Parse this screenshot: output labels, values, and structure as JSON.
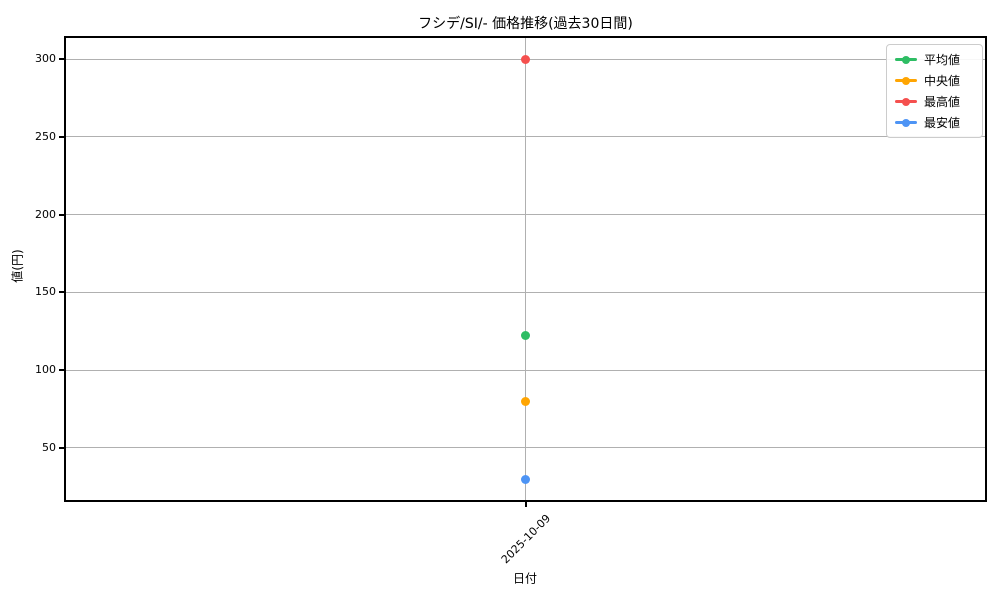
{
  "chart_data": {
    "type": "line",
    "title": "フシデ/SI/- 価格推移(過去30日間)",
    "xlabel": "日付",
    "ylabel": "値(円)",
    "x": [
      "2025-10-09"
    ],
    "series": [
      {
        "name": "平均値",
        "color": "#2ebd64",
        "values": [
          122
        ]
      },
      {
        "name": "中央値",
        "color": "#ffa502",
        "values": [
          80
        ]
      },
      {
        "name": "最高値",
        "color": "#f5504e",
        "values": [
          300
        ]
      },
      {
        "name": "最安値",
        "color": "#4d94f5",
        "values": [
          30
        ]
      }
    ],
    "ylim": [
      16.5,
      313.5
    ],
    "yticks": [
      50,
      100,
      150,
      200,
      250,
      300
    ],
    "grid": true,
    "grid_color": "#b0b0b0",
    "spine_color": "#000000",
    "legend_position": "upper right"
  }
}
